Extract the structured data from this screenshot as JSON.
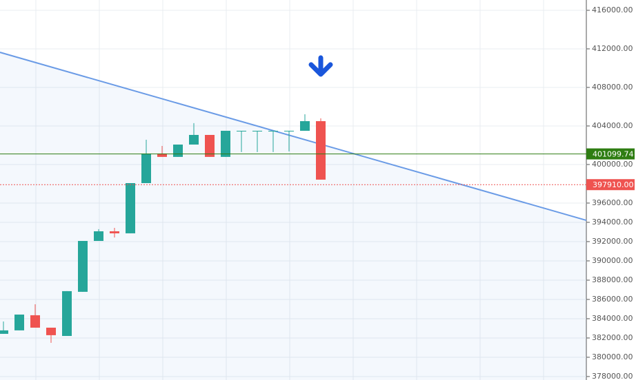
{
  "chart_data": {
    "type": "candlestick",
    "open": [
      382430,
      382790,
      384360,
      383070,
      382210,
      386790,
      392070,
      393070,
      392860,
      398070,
      401140,
      400790,
      402070,
      403070,
      400790,
      403500,
      403500,
      403500,
      403500,
      403500,
      404500
    ],
    "high": [
      383710,
      384430,
      385500,
      383070,
      386860,
      392070,
      393290,
      393430,
      398070,
      402570,
      401930,
      402070,
      404290,
      403070,
      403500,
      403500,
      403500,
      403500,
      403500,
      405210,
      404790
    ],
    "low": [
      382430,
      382790,
      383070,
      381500,
      382210,
      386790,
      392070,
      392430,
      392860,
      398070,
      400790,
      400790,
      402070,
      400790,
      400790,
      401290,
      401290,
      401290,
      401360,
      403500,
      398430
    ],
    "close": [
      382790,
      384430,
      383070,
      382290,
      386860,
      392070,
      393070,
      392860,
      398070,
      401140,
      400790,
      402070,
      403070,
      400790,
      403500,
      403500,
      403500,
      403500,
      403500,
      404500,
      398430
    ],
    "up_color": "#26a69a",
    "down_color": "#ef5350",
    "ylim": [
      377640,
      417070
    ],
    "yticks": [
      {
        "value": 378000,
        "label": "378000.00"
      },
      {
        "value": 380000,
        "label": "380000.00"
      },
      {
        "value": 382000,
        "label": "382000.00"
      },
      {
        "value": 384000,
        "label": "384000.00"
      },
      {
        "value": 386000,
        "label": "386000.00"
      },
      {
        "value": 388000,
        "label": "388000.00"
      },
      {
        "value": 390000,
        "label": "390000.00"
      },
      {
        "value": 392000,
        "label": "392000.00"
      },
      {
        "value": 394000,
        "label": "394000.00"
      },
      {
        "value": 396000,
        "label": "396000.00"
      },
      {
        "value": 400000,
        "label": "400000.00"
      },
      {
        "value": 404000,
        "label": "404000.00"
      },
      {
        "value": 408000,
        "label": "408000.00"
      },
      {
        "value": 412000,
        "label": "412000.00"
      },
      {
        "value": 416000,
        "label": "416000.00"
      }
    ],
    "grid": true,
    "price_lines": [
      {
        "value": 401099.74,
        "label": "401099.74",
        "color": "#2e7d12",
        "style": "solid"
      },
      {
        "value": 397910,
        "label": "397910.00",
        "color": "#ef5350",
        "style": "dotted"
      }
    ],
    "trendline": {
      "x": [
        -0.22,
        36.74
      ],
      "y": [
        411640,
        394210
      ],
      "color": "#6a9be6"
    },
    "markers": [
      {
        "index": 20,
        "direction": "down",
        "color": "#1a56db"
      }
    ]
  }
}
